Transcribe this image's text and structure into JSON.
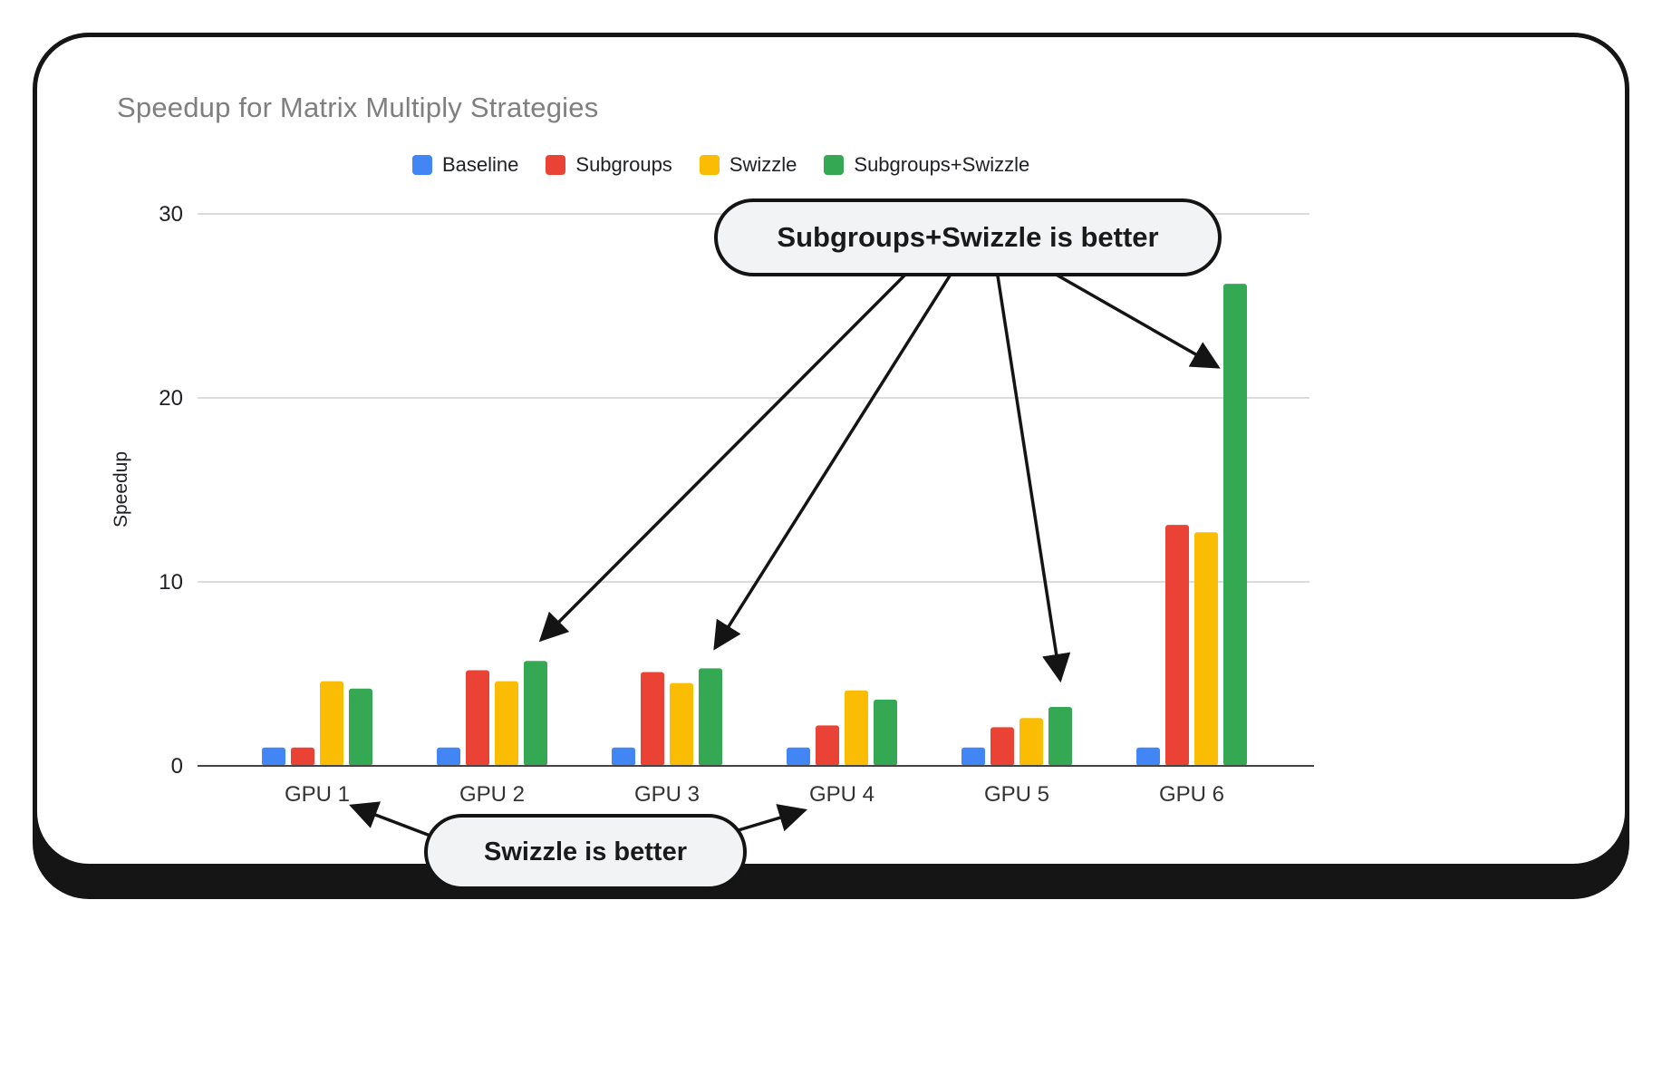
{
  "chart_data": {
    "type": "bar",
    "title": "Speedup for Matrix Multiply Strategies",
    "xlabel": "",
    "ylabel": "Speedup",
    "ylim": [
      0,
      30
    ],
    "yticks": [
      0,
      10,
      20,
      30
    ],
    "grid": true,
    "legend_position": "top",
    "categories": [
      "GPU 1",
      "GPU 2",
      "GPU 3",
      "GPU 4",
      "GPU 5",
      "GPU 6"
    ],
    "series": [
      {
        "name": "Baseline",
        "color": "#4285F4",
        "values": [
          1.0,
          1.0,
          1.0,
          1.0,
          1.0,
          1.0
        ]
      },
      {
        "name": "Subgroups",
        "color": "#EA4335",
        "values": [
          1.0,
          5.2,
          5.1,
          2.2,
          2.1,
          13.1
        ]
      },
      {
        "name": "Swizzle",
        "color": "#FBBC04",
        "values": [
          4.6,
          4.6,
          4.5,
          4.1,
          2.6,
          12.7
        ]
      },
      {
        "name": "Subgroups+Swizzle",
        "color": "#34A853",
        "values": [
          4.2,
          5.7,
          5.3,
          3.6,
          3.2,
          26.2
        ]
      }
    ],
    "annotations": [
      {
        "text": "Subgroups+Swizzle is better",
        "points_to": [
          "GPU 2: Subgroups+Swizzle",
          "GPU 3: Subgroups+Swizzle",
          "GPU 5: Subgroups+Swizzle",
          "GPU 6: Subgroups+Swizzle"
        ]
      },
      {
        "text": "Swizzle is better",
        "points_to": [
          "GPU 1: Swizzle",
          "GPU 4: Swizzle"
        ]
      }
    ]
  }
}
